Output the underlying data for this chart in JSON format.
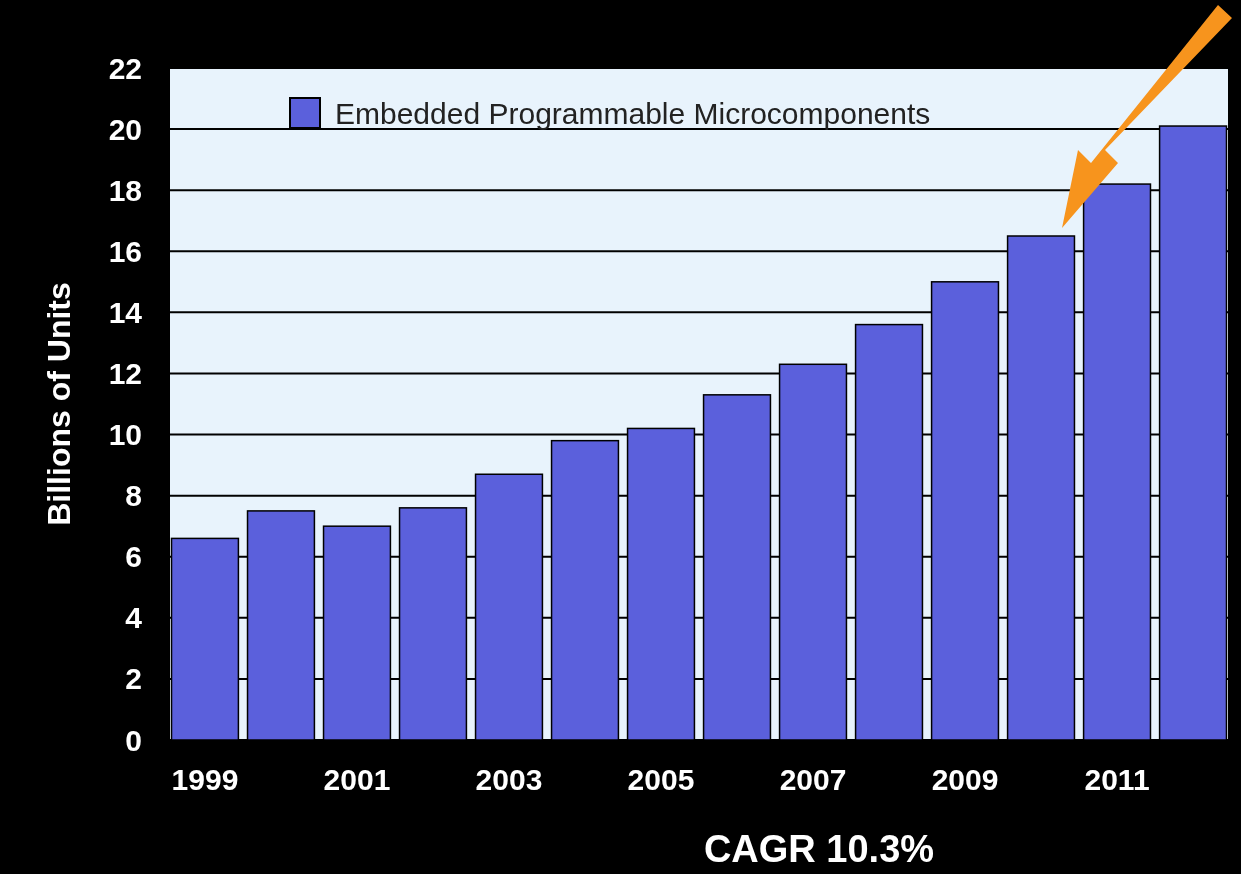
{
  "chart_data": {
    "type": "bar",
    "xlabel": "CAGR 10.3%",
    "ylabel": "Billions of Units",
    "categories": [
      "1999",
      null,
      "2001",
      null,
      "2003",
      null,
      "2005",
      null,
      "2007",
      null,
      "2009",
      null,
      "2011",
      null
    ],
    "series": [
      {
        "name": "Embedded Programmable Microcomponents",
        "color": "#5b60dc",
        "values": [
          6.6,
          7.5,
          7.0,
          7.6,
          8.7,
          9.8,
          10.2,
          11.3,
          12.3,
          13.6,
          15.0,
          16.5,
          18.2,
          20.1
        ]
      }
    ],
    "ylim": [
      0,
      22
    ],
    "yticks": [
      0,
      2,
      4,
      6,
      8,
      10,
      12,
      14,
      16,
      18,
      20,
      22
    ],
    "grid": "y",
    "legend": "top"
  }
}
